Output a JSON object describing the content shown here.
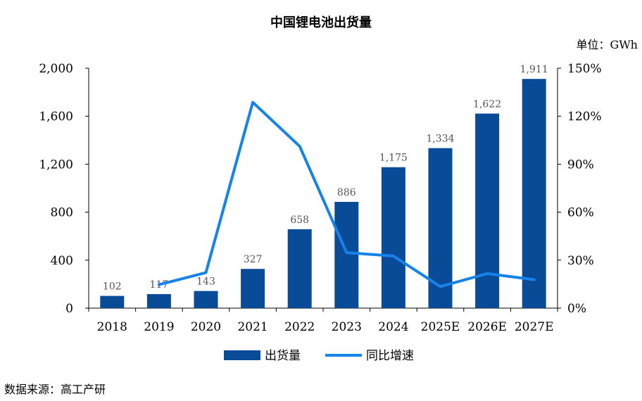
{
  "chart_data": {
    "type": "bar",
    "title": "中国锂电池出货量",
    "unit_label": "单位：GWh",
    "source": "数据来源：高工产研",
    "categories": [
      "2018",
      "2019",
      "2020",
      "2021",
      "2022",
      "2023",
      "2024",
      "2025E",
      "2026E",
      "2027E"
    ],
    "series": [
      {
        "name": "出货量",
        "type": "bar",
        "axis": "left",
        "color": "#0a4b97",
        "values": [
          102,
          117,
          143,
          327,
          658,
          886,
          1175,
          1334,
          1622,
          1911
        ],
        "labels": [
          "102",
          "117",
          "143",
          "327",
          "658",
          "886",
          "1,175",
          "1,334",
          "1,622",
          "1,911"
        ]
      },
      {
        "name": "同比增速",
        "type": "line",
        "axis": "right",
        "color": "#1583e8",
        "values": [
          null,
          14.7,
          22.2,
          128.7,
          101.2,
          34.7,
          32.6,
          13.5,
          21.6,
          17.8
        ]
      }
    ],
    "y_left": {
      "min": 0,
      "max": 2000,
      "ticks": [
        0,
        400,
        800,
        1200,
        1600,
        2000
      ],
      "tick_labels": [
        "0",
        "400",
        "800",
        "1,200",
        "1,600",
        "2,000"
      ]
    },
    "y_right": {
      "min": 0,
      "max": 150,
      "ticks": [
        0,
        30,
        60,
        90,
        120,
        150
      ],
      "tick_labels": [
        "0%",
        "30%",
        "60%",
        "90%",
        "120%",
        "150%"
      ]
    },
    "grid": false,
    "legend_position": "bottom"
  }
}
